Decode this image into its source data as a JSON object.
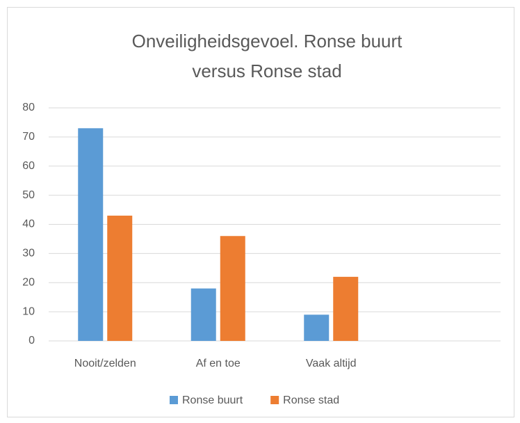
{
  "chart_data": {
    "type": "bar",
    "title": "Onveiligheidsgevoel. Ronse buurt versus Ronse stad",
    "categories": [
      "Nooit/zelden",
      "Af en toe",
      "Vaak altijd",
      null
    ],
    "series": [
      {
        "name": "Ronse buurt",
        "color": "#5b9bd5",
        "values": [
          73,
          18,
          9,
          null
        ]
      },
      {
        "name": "Ronse stad",
        "color": "#ed7d31",
        "values": [
          43,
          36,
          22,
          null
        ]
      }
    ],
    "ylim": [
      0,
      80
    ],
    "yticks": [
      0,
      10,
      20,
      30,
      40,
      50,
      60,
      70,
      80
    ],
    "grid": true,
    "legend": "bottom"
  }
}
